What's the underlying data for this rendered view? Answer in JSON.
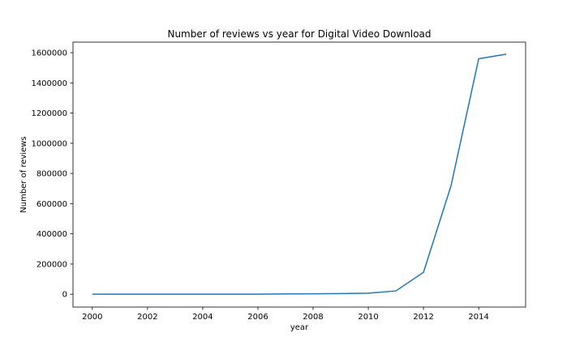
{
  "chart_data": {
    "type": "line",
    "title": "Number of reviews vs year for Digital Video Download",
    "xlabel": "year",
    "ylabel": "Number of reviews",
    "xlim": [
      1999.3,
      2015.7
    ],
    "ylim": [
      -85000,
      1670000
    ],
    "xticks": [
      2000,
      2002,
      2004,
      2006,
      2008,
      2010,
      2012,
      2014
    ],
    "xtick_labels": [
      "2000",
      "2002",
      "2004",
      "2006",
      "2008",
      "2010",
      "2012",
      "2014"
    ],
    "yticks": [
      0,
      200000,
      400000,
      600000,
      800000,
      1000000,
      1200000,
      1400000,
      1600000
    ],
    "ytick_labels": [
      "0",
      "200000",
      "400000",
      "600000",
      "800000",
      "1000000",
      "1200000",
      "1400000",
      "1600000"
    ],
    "grid": false,
    "series": [
      {
        "color": "#1f77b4",
        "x": [
          2000,
          2001,
          2002,
          2003,
          2004,
          2005,
          2006,
          2007,
          2008,
          2009,
          2010,
          2011,
          2012,
          2013,
          2014,
          2015
        ],
        "y": [
          0,
          0,
          0,
          0,
          0,
          0,
          500,
          2500,
          3000,
          4000,
          7000,
          22000,
          145000,
          720000,
          1560000,
          1590000
        ]
      }
    ]
  }
}
